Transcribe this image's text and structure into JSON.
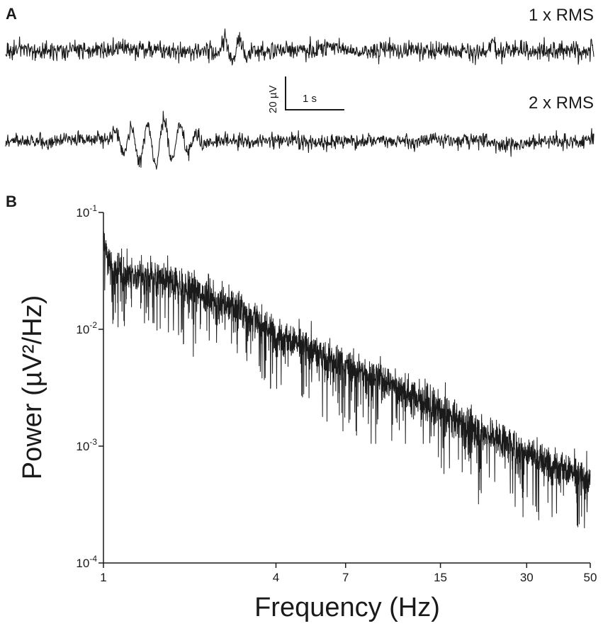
{
  "panel_a": {
    "letter": "A",
    "trace_1_label": "1 x RMS",
    "trace_2_label": "2 x RMS",
    "scale_bar": {
      "amplitude_label": "20 µV",
      "time_label": "1 s"
    }
  },
  "panel_b": {
    "letter": "B"
  },
  "colors": {
    "trace": "#1a1a1a",
    "background": "#ffffff"
  },
  "chart_data": {
    "type": "line",
    "xlabel": "Frequency (Hz)",
    "ylabel": "Power (µV²/Hz)",
    "x_scale": "log",
    "y_scale": "log",
    "xlim": [
      1,
      50
    ],
    "ylim": [
      0.0001,
      0.1
    ],
    "x_ticks": [
      1,
      4,
      7,
      15,
      30,
      50
    ],
    "y_ticks": [
      {
        "base": "10",
        "exp": "-1",
        "value": 0.1
      },
      {
        "base": "10",
        "exp": "-2",
        "value": 0.01
      },
      {
        "base": "10",
        "exp": "-3",
        "value": 0.001
      },
      {
        "base": "10",
        "exp": "-4",
        "value": 0.0001
      }
    ],
    "grid": false,
    "series": [
      {
        "x": [
          1,
          1.05,
          1.2,
          1.5,
          2,
          2.5,
          3,
          4,
          5,
          6,
          7,
          8,
          10,
          12,
          15,
          20,
          25,
          30,
          40,
          50
        ],
        "values": [
          0.06,
          0.035,
          0.03,
          0.028,
          0.022,
          0.018,
          0.015,
          0.009,
          0.0072,
          0.0058,
          0.0048,
          0.0042,
          0.0035,
          0.0027,
          0.002,
          0.0014,
          0.0011,
          0.0009,
          0.00065,
          0.0005
        ]
      }
    ]
  }
}
